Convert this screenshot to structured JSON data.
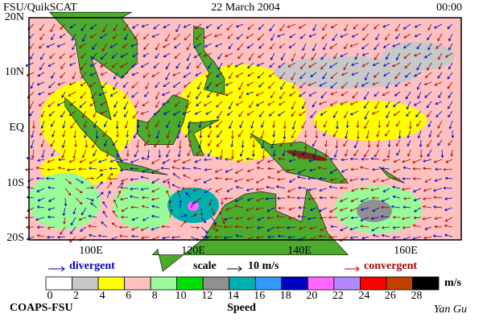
{
  "header": {
    "left": "FSU/QuikSCAT",
    "center": "22 March 2004",
    "right": "00:00"
  },
  "map": {
    "lat_labels": [
      "20N",
      "10N",
      "EQ",
      "10S",
      "20S"
    ],
    "lon_labels": [
      "100E",
      "120E",
      "140E",
      "160E"
    ]
  },
  "legend": {
    "divergent": "divergent",
    "scale": "scale",
    "scale_value": "10 m/s",
    "convergent": "convergent"
  },
  "colorbar": {
    "ticks": [
      0,
      2,
      4,
      6,
      8,
      10,
      12,
      14,
      16,
      18,
      20,
      22,
      24,
      26,
      28
    ],
    "colors": [
      "#ffffff",
      "#c8c8c8",
      "#ffff00",
      "#ffc0c0",
      "#98fb98",
      "#00e000",
      "#909090",
      "#00b0b0",
      "#3399ff",
      "#0000c0",
      "#ff66ff",
      "#b088ff",
      "#ff0000",
      "#c04000",
      "#000000"
    ],
    "unit": "m/s",
    "label": "Speed"
  },
  "footer": {
    "left": "COAPS-FSU",
    "right": "Yan Gu"
  }
}
